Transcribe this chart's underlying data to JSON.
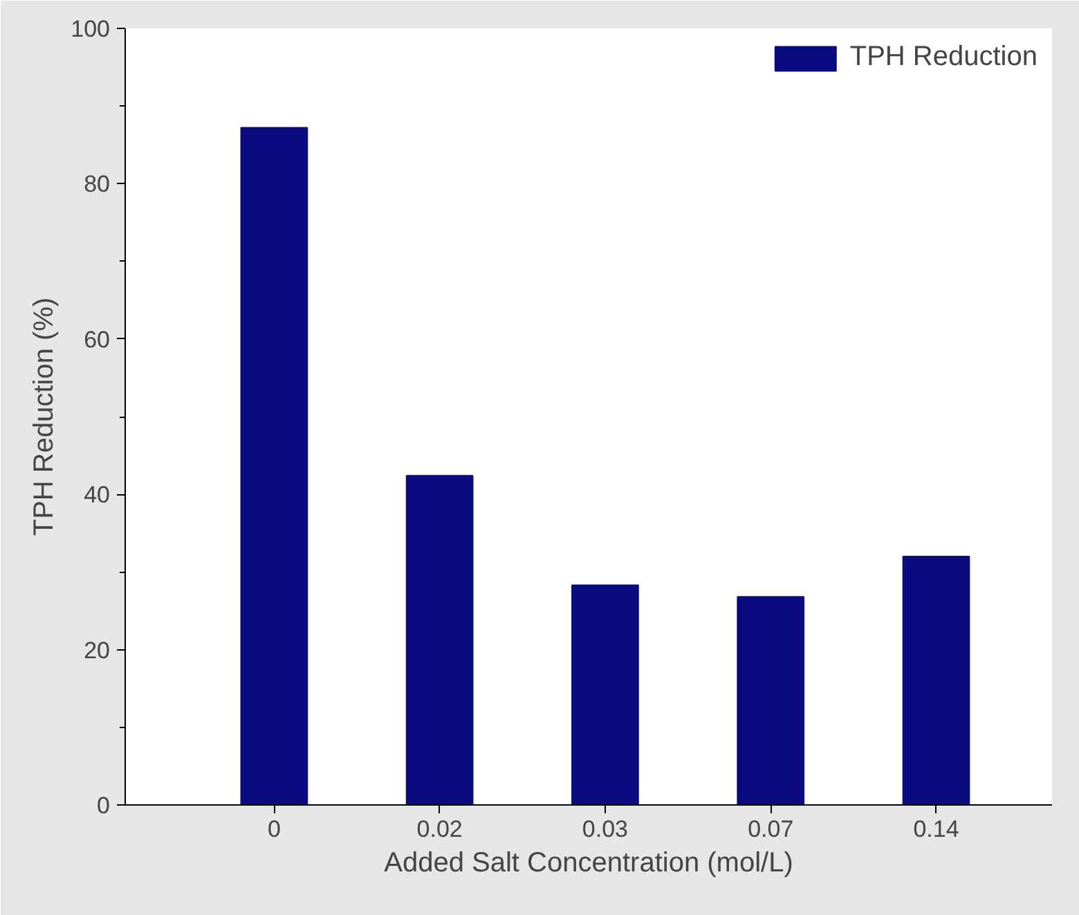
{
  "chart_data": {
    "type": "bar",
    "xlabel": "Added Salt Concentration (mol/L)",
    "ylabel": "TPH Reduction (%)",
    "categories": [
      "0",
      "0.02",
      "0.03",
      "0.07",
      "0.14"
    ],
    "series": [
      {
        "name": "TPH Reduction",
        "color": "#0b0b80",
        "values": [
          87.2,
          42.4,
          28.3,
          26.8,
          32.0
        ]
      }
    ],
    "ylim": [
      0,
      100
    ],
    "yticks": [
      0,
      20,
      40,
      60,
      80,
      100
    ],
    "grid": false,
    "legend": "top right"
  }
}
